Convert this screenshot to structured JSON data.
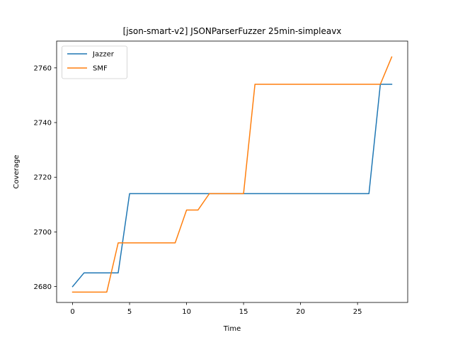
{
  "chart_data": {
    "type": "line",
    "title": "[json-smart-v2] JSONParserFuzzer 25min-simpleavx",
    "xlabel": "Time",
    "ylabel": "Coverage",
    "xlim": [
      -1.4,
      29.4
    ],
    "ylim": [
      2674.2,
      2769.8
    ],
    "xticks": [
      0,
      5,
      10,
      15,
      20,
      25
    ],
    "yticks": [
      2680,
      2700,
      2720,
      2740,
      2760
    ],
    "grid": false,
    "legend": "top-left",
    "series": [
      {
        "name": "Jazzer",
        "color": "#1f77b4",
        "x": [
          0,
          1,
          2,
          3,
          4,
          5,
          6,
          7,
          8,
          9,
          10,
          11,
          12,
          13,
          14,
          15,
          16,
          17,
          18,
          19,
          20,
          21,
          22,
          23,
          24,
          25,
          26,
          27,
          28
        ],
        "values": [
          2680,
          2685,
          2685,
          2685,
          2685,
          2714,
          2714,
          2714,
          2714,
          2714,
          2714,
          2714,
          2714,
          2714,
          2714,
          2714,
          2714,
          2714,
          2714,
          2714,
          2714,
          2714,
          2714,
          2714,
          2714,
          2714,
          2714,
          2754,
          2754
        ]
      },
      {
        "name": "SMF",
        "color": "#ff7f0e",
        "x": [
          0,
          1,
          2,
          3,
          4,
          5,
          6,
          7,
          8,
          9,
          10,
          11,
          12,
          13,
          14,
          15,
          16,
          17,
          18,
          19,
          20,
          21,
          22,
          23,
          24,
          25,
          26,
          27,
          28
        ],
        "values": [
          2678,
          2678,
          2678,
          2678,
          2696,
          2696,
          2696,
          2696,
          2696,
          2696,
          2708,
          2708,
          2714,
          2714,
          2714,
          2714,
          2754,
          2754,
          2754,
          2754,
          2754,
          2754,
          2754,
          2754,
          2754,
          2754,
          2754,
          2754,
          2764
        ]
      }
    ]
  }
}
